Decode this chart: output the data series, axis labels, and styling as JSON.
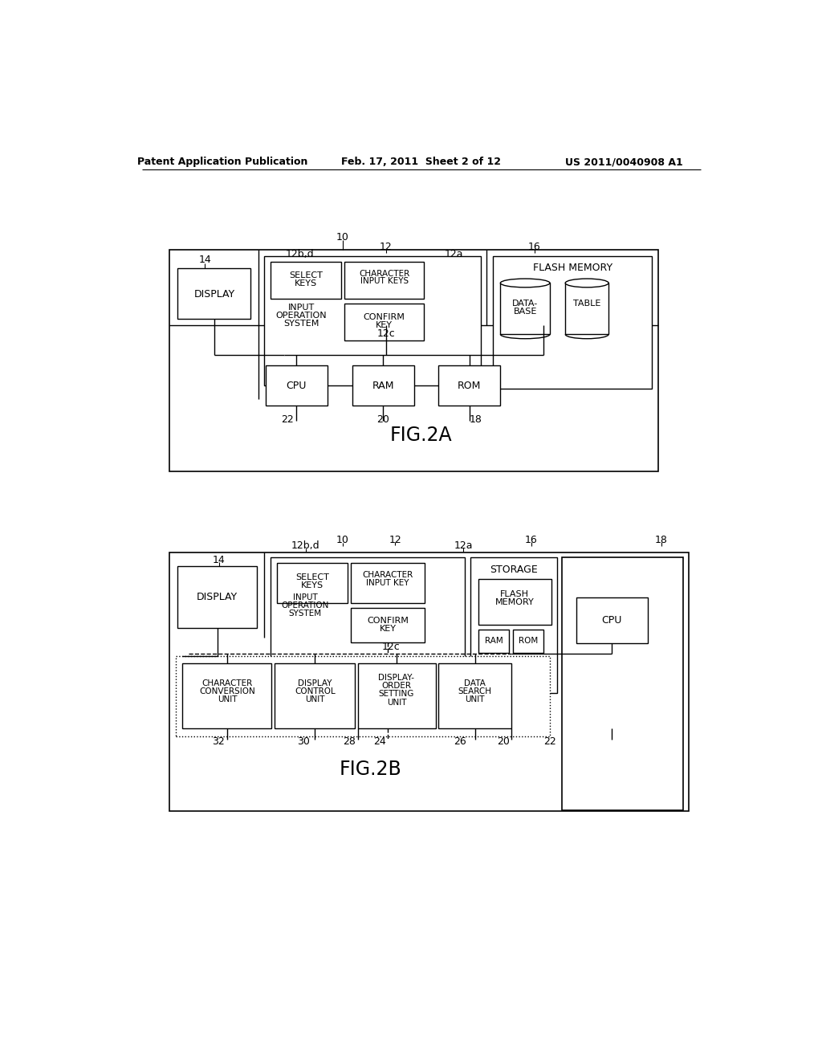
{
  "header_left": "Patent Application Publication",
  "header_mid": "Feb. 17, 2011  Sheet 2 of 12",
  "header_right": "US 2011/0040908 A1",
  "fig2a_label": "FIG.2A",
  "fig2b_label": "FIG.2B",
  "bg_color": "#ffffff",
  "box_color": "#000000",
  "text_color": "#000000"
}
